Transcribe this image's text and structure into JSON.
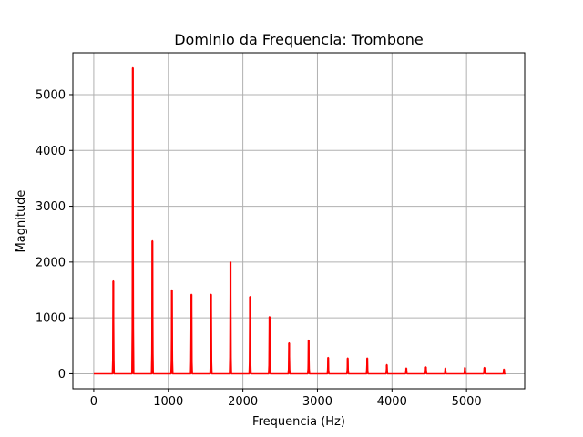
{
  "chart_data": {
    "type": "line",
    "title": "Dominio da Frequencia: Trombone",
    "xlabel": "Frequencia (Hz)",
    "ylabel": "Magnitude",
    "xlim": [
      -280,
      5780
    ],
    "ylim": [
      -270,
      5750
    ],
    "xticks": [
      0,
      1000,
      2000,
      3000,
      4000,
      5000
    ],
    "yticks": [
      0,
      1000,
      2000,
      3000,
      4000,
      5000
    ],
    "grid": true,
    "series": [
      {
        "color": "#ff0000",
        "x_range": [
          0,
          5500
        ],
        "peaks": [
          {
            "x": 262,
            "y": 1660
          },
          {
            "x": 524,
            "y": 5480
          },
          {
            "x": 786,
            "y": 2380
          },
          {
            "x": 1048,
            "y": 1500
          },
          {
            "x": 1310,
            "y": 1420
          },
          {
            "x": 1572,
            "y": 1420
          },
          {
            "x": 1834,
            "y": 2000
          },
          {
            "x": 2096,
            "y": 1380
          },
          {
            "x": 2358,
            "y": 1020
          },
          {
            "x": 2620,
            "y": 550
          },
          {
            "x": 2882,
            "y": 600
          },
          {
            "x": 3144,
            "y": 290
          },
          {
            "x": 3406,
            "y": 280
          },
          {
            "x": 3668,
            "y": 280
          },
          {
            "x": 3930,
            "y": 160
          },
          {
            "x": 4192,
            "y": 100
          },
          {
            "x": 4454,
            "y": 120
          },
          {
            "x": 4716,
            "y": 100
          },
          {
            "x": 4978,
            "y": 110
          },
          {
            "x": 5240,
            "y": 110
          },
          {
            "x": 5502,
            "y": 80
          }
        ]
      }
    ]
  }
}
